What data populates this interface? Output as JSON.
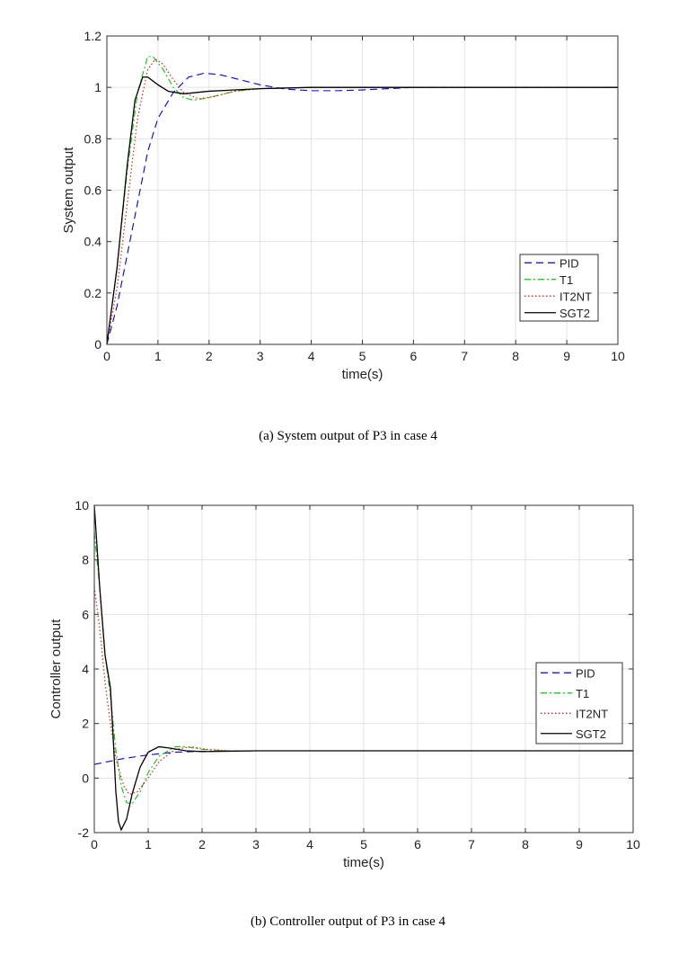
{
  "chart_data": [
    {
      "type": "line",
      "title": "",
      "caption": "(a) System output of P3 in case 4",
      "xlabel": "time(s)",
      "ylabel": "System output",
      "xlim": [
        0,
        10
      ],
      "ylim": [
        0,
        1.2
      ],
      "xticks": [
        "0",
        "1",
        "2",
        "3",
        "4",
        "5",
        "6",
        "7",
        "8",
        "9",
        "10"
      ],
      "yticks": [
        "0",
        "0.2",
        "0.4",
        "0.6",
        "0.8",
        "1",
        "1.2"
      ],
      "grid": true,
      "legend_position": "bottom-right",
      "series": [
        {
          "name": "PID",
          "color": "#0000ff",
          "style": "dashed",
          "points": [
            [
              0,
              0
            ],
            [
              0.2,
              0.15
            ],
            [
              0.5,
              0.45
            ],
            [
              0.8,
              0.75
            ],
            [
              1.0,
              0.88
            ],
            [
              1.3,
              0.98
            ],
            [
              1.6,
              1.04
            ],
            [
              1.9,
              1.055
            ],
            [
              2.2,
              1.05
            ],
            [
              2.6,
              1.03
            ],
            [
              3,
              1.01
            ],
            [
              3.5,
              0.993
            ],
            [
              4,
              0.987
            ],
            [
              4.5,
              0.987
            ],
            [
              5,
              0.99
            ],
            [
              5.5,
              0.995
            ],
            [
              6,
              1
            ],
            [
              10,
              1
            ]
          ]
        },
        {
          "name": "T1",
          "color": "#00cc00",
          "style": "dashdot",
          "points": [
            [
              0,
              0
            ],
            [
              0.2,
              0.3
            ],
            [
              0.4,
              0.68
            ],
            [
              0.6,
              0.98
            ],
            [
              0.8,
              1.12
            ],
            [
              0.9,
              1.12
            ],
            [
              1.1,
              1.07
            ],
            [
              1.3,
              1.0
            ],
            [
              1.5,
              0.96
            ],
            [
              1.7,
              0.95
            ],
            [
              2,
              0.96
            ],
            [
              2.5,
              0.985
            ],
            [
              3,
              0.995
            ],
            [
              4,
              1
            ],
            [
              10,
              1
            ]
          ]
        },
        {
          "name": "IT2NT",
          "color": "#ff0000",
          "style": "dotted",
          "points": [
            [
              0,
              0
            ],
            [
              0.2,
              0.22
            ],
            [
              0.4,
              0.55
            ],
            [
              0.6,
              0.88
            ],
            [
              0.8,
              1.07
            ],
            [
              0.95,
              1.11
            ],
            [
              1.1,
              1.09
            ],
            [
              1.3,
              1.03
            ],
            [
              1.5,
              0.98
            ],
            [
              1.8,
              0.955
            ],
            [
              2.1,
              0.965
            ],
            [
              2.5,
              0.985
            ],
            [
              3,
              0.995
            ],
            [
              4,
              1
            ],
            [
              10,
              1
            ]
          ]
        },
        {
          "name": "SGT2",
          "color": "#000000",
          "style": "solid",
          "points": [
            [
              0,
              0
            ],
            [
              0.2,
              0.3
            ],
            [
              0.4,
              0.7
            ],
            [
              0.55,
              0.95
            ],
            [
              0.7,
              1.04
            ],
            [
              0.8,
              1.04
            ],
            [
              1,
              1.01
            ],
            [
              1.2,
              0.985
            ],
            [
              1.5,
              0.975
            ],
            [
              2,
              0.985
            ],
            [
              2.5,
              0.99
            ],
            [
              3,
              0.995
            ],
            [
              4,
              1
            ],
            [
              10,
              1
            ]
          ]
        }
      ]
    },
    {
      "type": "line",
      "title": "",
      "caption": "(b) Controller output of P3 in case 4",
      "xlabel": "time(s)",
      "ylabel": "Controller output",
      "xlim": [
        0,
        10
      ],
      "ylim": [
        -2,
        10
      ],
      "xticks": [
        "0",
        "1",
        "2",
        "3",
        "4",
        "5",
        "6",
        "7",
        "8",
        "9",
        "10"
      ],
      "yticks": [
        "-2",
        "0",
        "2",
        "4",
        "6",
        "8",
        "10"
      ],
      "grid": true,
      "legend_position": "middle-right",
      "series": [
        {
          "name": "PID",
          "color": "#0000ff",
          "style": "dashed",
          "points": [
            [
              0,
              0.5
            ],
            [
              0.5,
              0.7
            ],
            [
              1,
              0.85
            ],
            [
              1.5,
              0.95
            ],
            [
              2,
              0.98
            ],
            [
              3,
              1
            ],
            [
              10,
              1
            ]
          ]
        },
        {
          "name": "T1",
          "color": "#00cc00",
          "style": "dashdot",
          "points": [
            [
              0,
              9
            ],
            [
              0.1,
              7
            ],
            [
              0.2,
              4.5
            ],
            [
              0.3,
              3
            ],
            [
              0.4,
              1
            ],
            [
              0.5,
              -0.3
            ],
            [
              0.6,
              -0.9
            ],
            [
              0.7,
              -0.95
            ],
            [
              0.85,
              -0.5
            ],
            [
              1,
              0.2
            ],
            [
              1.2,
              0.8
            ],
            [
              1.5,
              1.15
            ],
            [
              1.7,
              1.15
            ],
            [
              2,
              1.05
            ],
            [
              2.5,
              1
            ],
            [
              10,
              1
            ]
          ]
        },
        {
          "name": "IT2NT",
          "color": "#ff0000",
          "style": "dotted",
          "points": [
            [
              0,
              7
            ],
            [
              0.1,
              5.5
            ],
            [
              0.2,
              3.5
            ],
            [
              0.3,
              2
            ],
            [
              0.4,
              0.7
            ],
            [
              0.55,
              -0.3
            ],
            [
              0.65,
              -0.6
            ],
            [
              0.8,
              -0.5
            ],
            [
              1,
              0
            ],
            [
              1.2,
              0.6
            ],
            [
              1.5,
              1.05
            ],
            [
              1.8,
              1.15
            ],
            [
              2.1,
              1.05
            ],
            [
              2.5,
              1
            ],
            [
              10,
              1
            ]
          ]
        },
        {
          "name": "SGT2",
          "color": "#000000",
          "style": "solid",
          "points": [
            [
              0,
              10
            ],
            [
              0.1,
              7
            ],
            [
              0.2,
              4.5
            ],
            [
              0.3,
              3.3
            ],
            [
              0.35,
              1.5
            ],
            [
              0.4,
              -0.5
            ],
            [
              0.45,
              -1.6
            ],
            [
              0.5,
              -1.9
            ],
            [
              0.6,
              -1.5
            ],
            [
              0.7,
              -0.6
            ],
            [
              0.85,
              0.4
            ],
            [
              1.0,
              0.95
            ],
            [
              1.2,
              1.15
            ],
            [
              1.4,
              1.1
            ],
            [
              1.7,
              1.0
            ],
            [
              2,
              0.97
            ],
            [
              3,
              1
            ],
            [
              10,
              1
            ]
          ]
        }
      ]
    }
  ]
}
